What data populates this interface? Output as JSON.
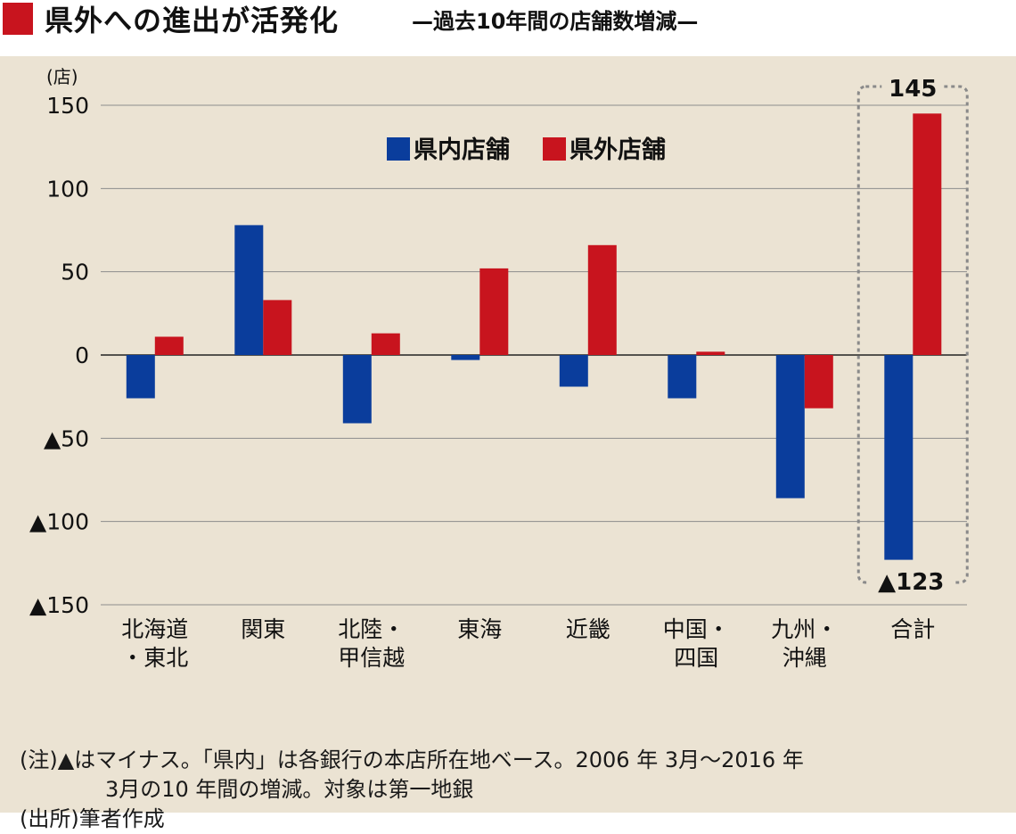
{
  "header": {
    "title": "県外への進出が活発化",
    "subtitle": "—過去10年間の店舗数増減—",
    "accent_color": "#c8141e"
  },
  "chart_data": {
    "type": "bar",
    "unit_label": "(店)",
    "categories": [
      [
        "北海道",
        "・東北"
      ],
      [
        "関東"
      ],
      [
        "北陸・",
        "甲信越"
      ],
      [
        "東海"
      ],
      [
        "近畿"
      ],
      [
        "中国・",
        "四国"
      ],
      [
        "九州・",
        "沖縄"
      ],
      [
        "合計"
      ]
    ],
    "series": [
      {
        "name": "県内店舗",
        "color": "#0a3d9c",
        "values": [
          -26,
          78,
          -41,
          -3,
          -19,
          -26,
          -86,
          -123
        ]
      },
      {
        "name": "県外店舗",
        "color": "#c8141e",
        "values": [
          11,
          33,
          13,
          52,
          66,
          2,
          -32,
          145
        ]
      }
    ],
    "ylim": [
      -150,
      150
    ],
    "yticks": [
      150,
      100,
      50,
      0,
      -50,
      -100,
      -150
    ],
    "ytick_labels": [
      "150",
      "100",
      "50",
      "0",
      "▲50",
      "▲100",
      "▲150"
    ],
    "grid": true,
    "legend_position": "top-center",
    "annotations": {
      "total_positive": "145",
      "total_negative": "▲123"
    },
    "highlight_box": "合計"
  },
  "notes": {
    "line1": "(注)▲はマイナス。「県内」は各銀行の本店所在地ベース。2006 年 3月〜2016 年",
    "line2": "3月の10 年間の増減。対象は第一地銀",
    "line3": "(出所)筆者作成"
  },
  "colors": {
    "panel_background": "#ebe3d3",
    "grid": "#8c8c8c",
    "box_border": "#8a8a8a"
  }
}
